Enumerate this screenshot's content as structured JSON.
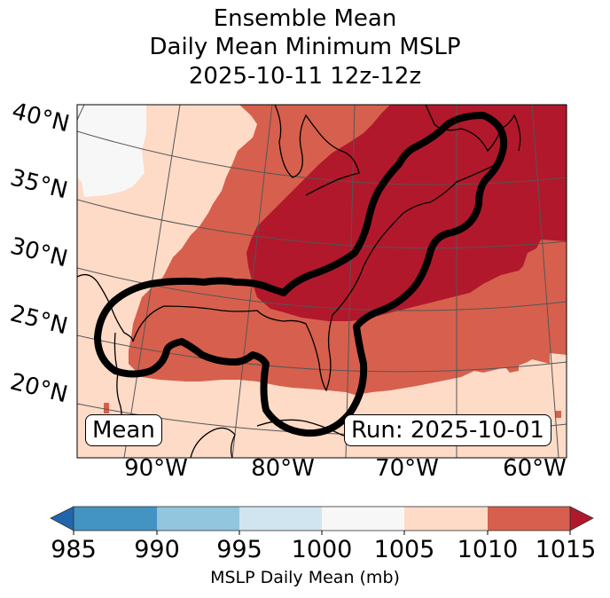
{
  "title": {
    "line1": "Ensemble Mean",
    "line2": "Daily Mean Minimum MSLP",
    "line3": "2025-10-11 12z-12z"
  },
  "map": {
    "lat_labels": [
      "40°N",
      "35°N",
      "30°N",
      "25°N",
      "20°N"
    ],
    "lon_labels": [
      "90°W",
      "80°W",
      "70°W",
      "60°W"
    ],
    "mean_label": "Mean",
    "run_label": "Run: 2025-10-01",
    "colors": {
      "gt1015": "#b2182b",
      "1010_1015": "#d6604d",
      "1005_1010": "#fddbc7",
      "1000_1005": "#f7f7f7",
      "contour": "#000000",
      "gridline": "#555555"
    }
  },
  "colorbar": {
    "ticks": [
      "985",
      "990",
      "995",
      "1000",
      "1005",
      "1010",
      "1015"
    ],
    "label": "MSLP Daily Mean (mb)",
    "colors": [
      "#2166ac",
      "#4393c3",
      "#92c5de",
      "#d1e5f0",
      "#f7f7f7",
      "#fddbc7",
      "#d6604d",
      "#b2182b"
    ]
  }
}
